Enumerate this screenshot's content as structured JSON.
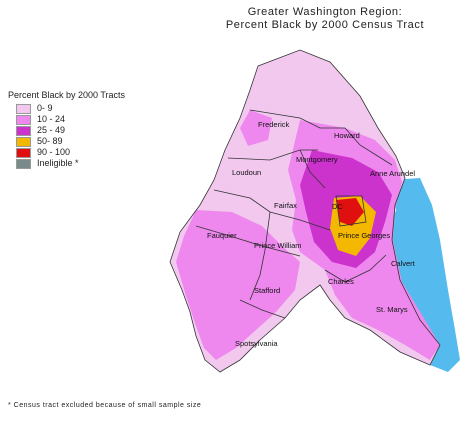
{
  "title": {
    "line1": "Greater Washington Region:",
    "line2": "Percent Black by 2000 Census Tract"
  },
  "legend": {
    "title": "Percent Black by 2000 Tracts",
    "items": [
      {
        "label": "0- 9",
        "color": "#f2c8ef"
      },
      {
        "label": "10 - 24",
        "color": "#ee88ee"
      },
      {
        "label": "25 - 49",
        "color": "#cc33cc"
      },
      {
        "label": "50- 89",
        "color": "#f5b800"
      },
      {
        "label": "90 - 100",
        "color": "#e01010"
      },
      {
        "label": "Ineligible *",
        "color": "#7a8a8a"
      }
    ]
  },
  "counties": [
    "Frederick",
    "Howard",
    "Montgomery",
    "Anne Arundel",
    "Loudoun",
    "Fairfax",
    "DC",
    "Prince Georges",
    "Fauquier",
    "Prince William",
    "Calvert",
    "Charles",
    "Stafford",
    "St. Marys",
    "Spotsylvania"
  ],
  "water_color": "#55bbee",
  "footnote": "* Census tract excluded because of small sample size"
}
